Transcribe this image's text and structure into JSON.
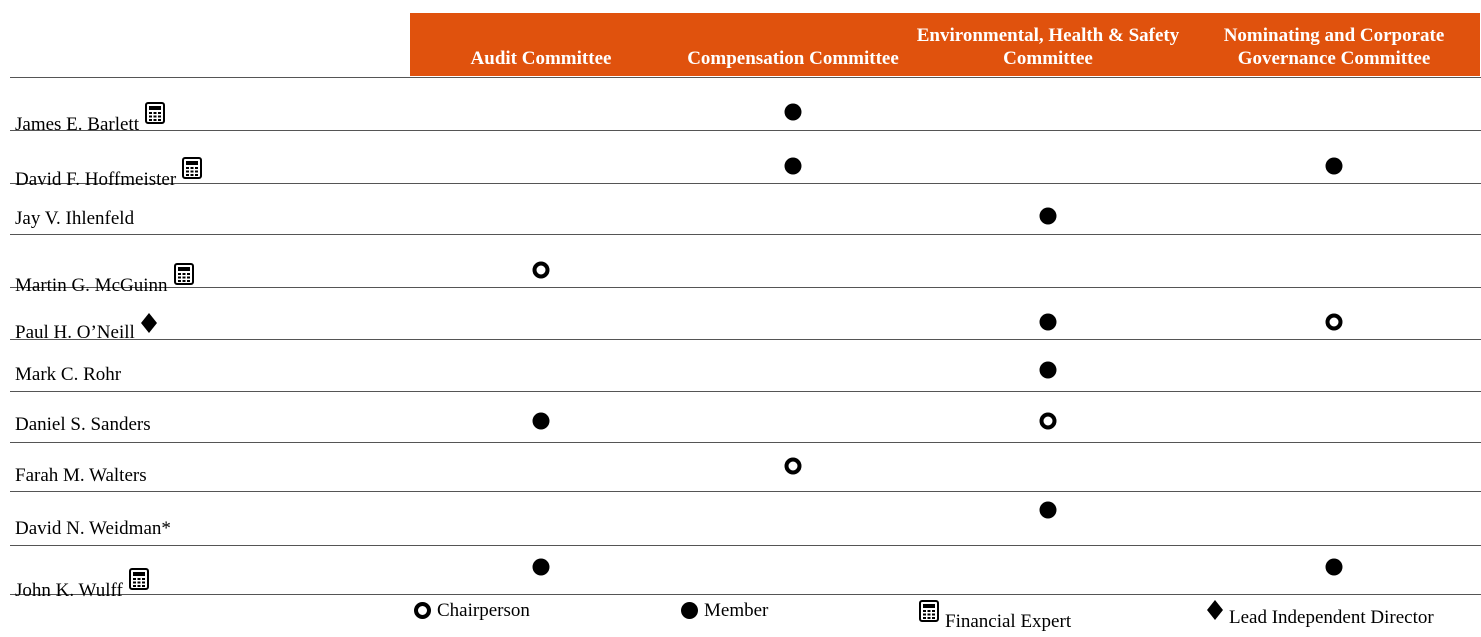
{
  "committees": [
    {
      "label": "Audit Committee"
    },
    {
      "label": "Compensation Committee"
    },
    {
      "label": "Environmental, Health & Safety Committee"
    },
    {
      "label": "Nominating and Corporate Governance Committee"
    }
  ],
  "directors": [
    {
      "name": "James E. Barlett",
      "financial_expert": true,
      "lead_director": false,
      "memberships": [
        "",
        "member",
        "",
        ""
      ]
    },
    {
      "name": "David F. Hoffmeister",
      "financial_expert": true,
      "lead_director": false,
      "memberships": [
        "",
        "member",
        "",
        "member"
      ]
    },
    {
      "name": "Jay V. Ihlenfeld",
      "financial_expert": false,
      "lead_director": false,
      "memberships": [
        "",
        "",
        "member",
        ""
      ]
    },
    {
      "name": "Martin G. McGuinn",
      "financial_expert": true,
      "lead_director": false,
      "memberships": [
        "chair",
        "",
        "",
        ""
      ]
    },
    {
      "name": "Paul H. O’Neill",
      "financial_expert": false,
      "lead_director": true,
      "memberships": [
        "",
        "",
        "member",
        "chair"
      ]
    },
    {
      "name": "Mark C. Rohr",
      "financial_expert": false,
      "lead_director": false,
      "memberships": [
        "",
        "",
        "member",
        ""
      ]
    },
    {
      "name": "Daniel S. Sanders",
      "financial_expert": false,
      "lead_director": false,
      "memberships": [
        "member",
        "",
        "chair",
        ""
      ]
    },
    {
      "name": "Farah M. Walters",
      "financial_expert": false,
      "lead_director": false,
      "memberships": [
        "",
        "chair",
        "",
        ""
      ]
    },
    {
      "name": "David N. Weidman*",
      "financial_expert": false,
      "lead_director": false,
      "memberships": [
        "",
        "",
        "member",
        ""
      ]
    },
    {
      "name": "John K. Wulff",
      "financial_expert": true,
      "lead_director": false,
      "memberships": [
        "member",
        "",
        "",
        "member"
      ]
    }
  ],
  "legend": {
    "chair_label": "Chairperson",
    "member_label": "Member",
    "expert_label": "Financial Expert",
    "lead_label": "Lead Independent Director"
  },
  "colors": {
    "header_bg": "#e0520d",
    "header_text": "#ffffff"
  }
}
